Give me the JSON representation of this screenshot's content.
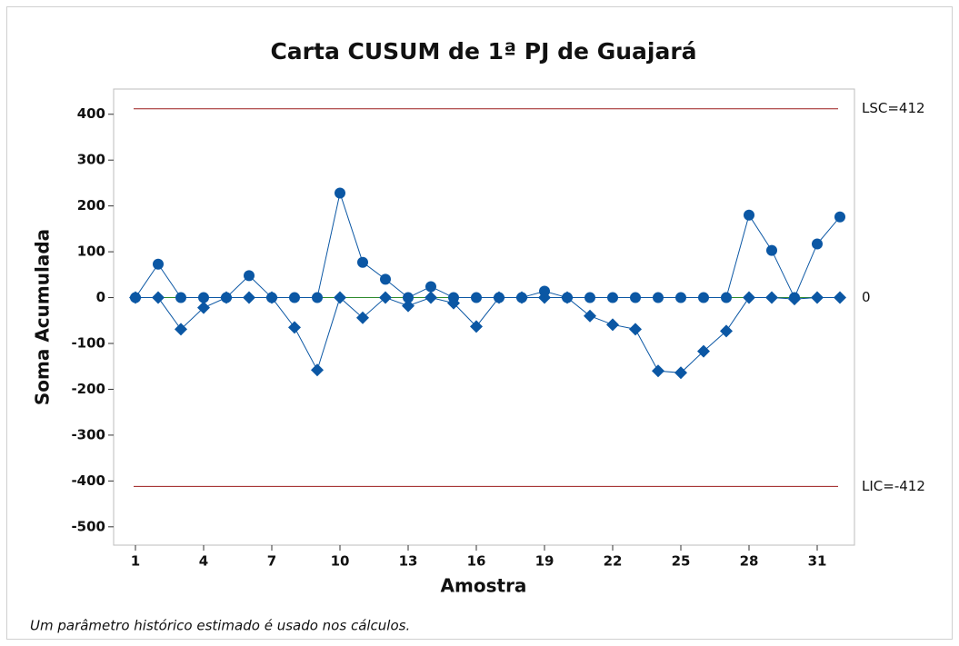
{
  "chart_data": {
    "type": "line",
    "title": "Carta CUSUM de 1ª PJ de Guajará",
    "xlabel": "Amostra",
    "ylabel": "Soma Acumulada",
    "footnote": "Um parâmetro histórico estimado é usado nos cálculos.",
    "x": [
      1,
      2,
      3,
      4,
      5,
      6,
      7,
      8,
      9,
      10,
      11,
      12,
      13,
      14,
      15,
      16,
      17,
      18,
      19,
      20,
      21,
      22,
      23,
      24,
      25,
      26,
      27,
      28,
      29,
      30,
      31,
      32
    ],
    "series": [
      {
        "color": "#0b57a4",
        "marker": "circle",
        "values": [
          0,
          73,
          0,
          0,
          0,
          48,
          0,
          0,
          0,
          228,
          77,
          40,
          0,
          24,
          0,
          0,
          0,
          0,
          14,
          0,
          0,
          0,
          0,
          0,
          0,
          0,
          0,
          180,
          103,
          0,
          117,
          176
        ]
      },
      {
        "color": "#0b57a4",
        "marker": "diamond",
        "values": [
          0,
          0,
          -69,
          -22,
          0,
          0,
          0,
          -65,
          -158,
          0,
          -44,
          0,
          -18,
          0,
          -12,
          -63,
          0,
          0,
          0,
          0,
          -40,
          -59,
          -69,
          -160,
          -164,
          -117,
          -73,
          0,
          0,
          -3,
          0,
          0
        ]
      }
    ],
    "control_lines": [
      {
        "value": 412,
        "label": "LSC=412",
        "color": "#9b1c1c"
      },
      {
        "value": 0,
        "label": "0",
        "color": "#2e8b2e"
      },
      {
        "value": -412,
        "label": "LIC=-412",
        "color": "#9b1c1c"
      }
    ],
    "xlim": [
      0.04,
      32.64
    ],
    "xticks": [
      1,
      4,
      7,
      10,
      13,
      16,
      19,
      22,
      25,
      28,
      31
    ],
    "ylim": [
      -540,
      455
    ],
    "yticks": [
      -500,
      -400,
      -300,
      -200,
      -100,
      0,
      100,
      200,
      300,
      400
    ]
  }
}
